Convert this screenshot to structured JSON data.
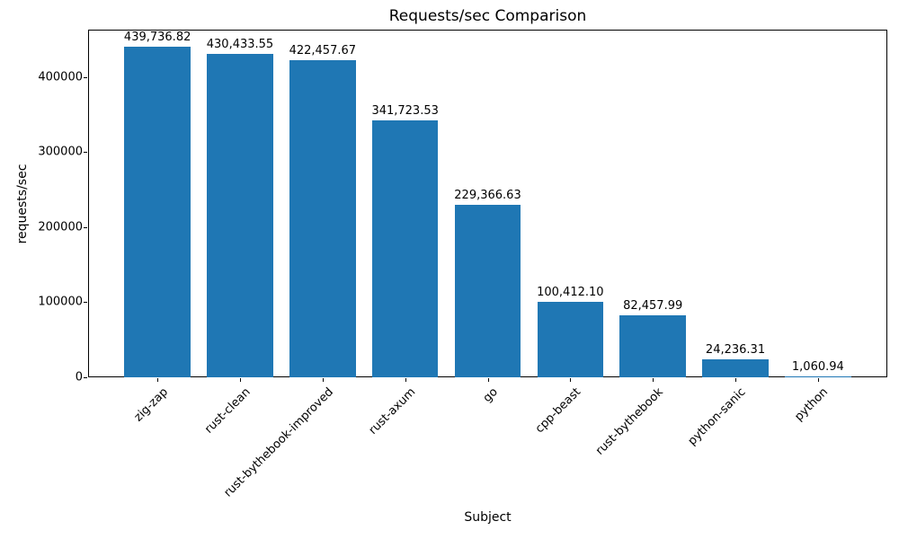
{
  "chart_data": {
    "type": "bar",
    "title": "Requests/sec Comparison",
    "xlabel": "Subject",
    "ylabel": "requests/sec",
    "categories": [
      "zig-zap",
      "rust-clean",
      "rust-bythebook-improved",
      "rust-axum",
      "go",
      "cpp-beast",
      "rust-bythebook",
      "python-sanic",
      "python"
    ],
    "values": [
      439736.82,
      430433.55,
      422457.67,
      341723.53,
      229366.63,
      100412.1,
      82457.99,
      24236.31,
      1060.94
    ],
    "value_labels": [
      "439,736.82",
      "430,433.55",
      "422,457.67",
      "341,723.53",
      "229,366.63",
      "100,412.10",
      "82,457.99",
      "24,236.31",
      "1,060.94"
    ],
    "yticks": [
      0,
      100000,
      200000,
      300000,
      400000
    ],
    "ytick_labels": [
      "0",
      "100000",
      "200000",
      "300000",
      "400000"
    ],
    "ylim": [
      0,
      463000
    ],
    "bar_color": "#1f77b4",
    "grid": false,
    "legend_position": "none"
  }
}
